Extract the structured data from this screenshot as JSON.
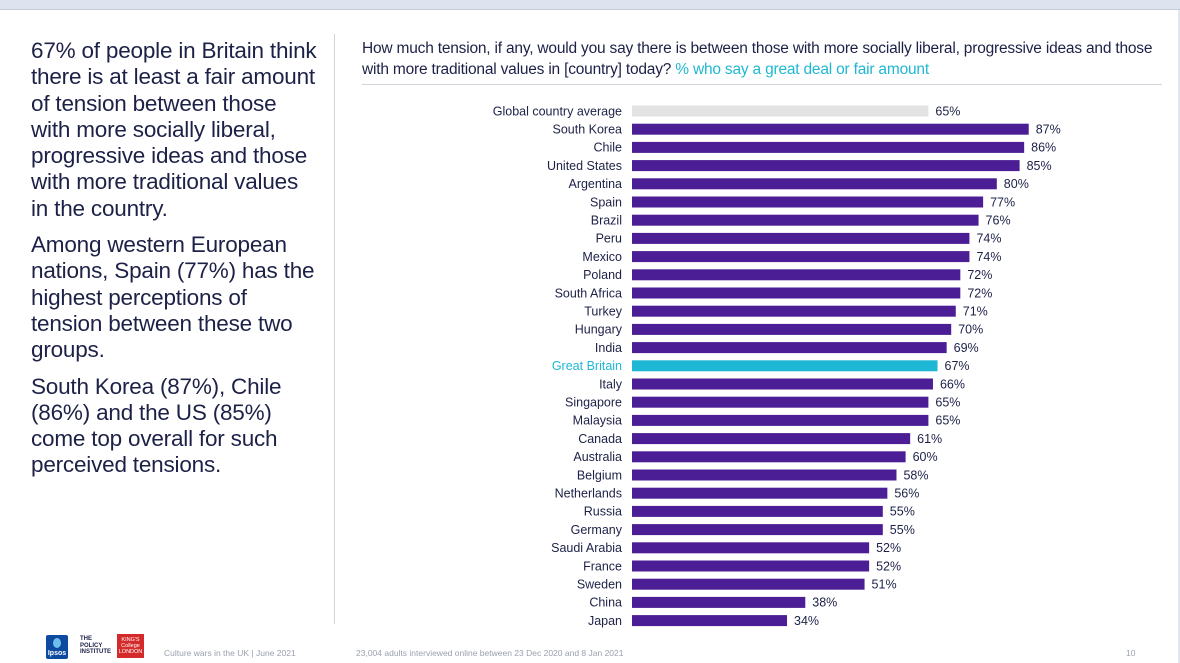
{
  "summary": {
    "para1": "67% of people in Britain think there is at least a fair amount of tension between those with more socially liberal, progressive ideas and those with more traditional values in the country.",
    "para2": "Among western European nations, Spain (77%) has the highest perceptions of tension between these two groups.",
    "para3": "South Korea (87%), Chile (86%) and the US (85%) come top overall for such perceived tensions."
  },
  "question": {
    "text": "How much tension, if any, would you say there is between those with more socially liberal, progressive ideas and those with more traditional values in [country] today?",
    "highlight": "% who say a great deal or fair amount"
  },
  "chart_data": {
    "type": "bar",
    "orientation": "horizontal",
    "title": "How much tension, if any, would you say there is between those with more socially liberal, progressive ideas and those with more traditional values in [country] today? % who say a great deal or fair amount",
    "xlim": [
      0,
      100
    ],
    "value_suffix": "%",
    "colors": {
      "default": "#4b1e95",
      "average": "#e3e3e3",
      "highlight": "#1fb8d4",
      "highlight_label": "#1fb8d4",
      "label": "#1d2147"
    },
    "categories": [
      "Global country average",
      "South Korea",
      "Chile",
      "United States",
      "Argentina",
      "Spain",
      "Brazil",
      "Peru",
      "Mexico",
      "Poland",
      "South Africa",
      "Turkey",
      "Hungary",
      "India",
      "Great Britain",
      "Italy",
      "Singapore",
      "Malaysia",
      "Canada",
      "Australia",
      "Belgium",
      "Netherlands",
      "Russia",
      "Germany",
      "Saudi Arabia",
      "France",
      "Sweden",
      "China",
      "Japan"
    ],
    "values": [
      65,
      87,
      86,
      85,
      80,
      77,
      76,
      74,
      74,
      72,
      72,
      71,
      70,
      69,
      67,
      66,
      65,
      65,
      61,
      60,
      58,
      56,
      55,
      55,
      52,
      52,
      51,
      38,
      34
    ],
    "bar_roles": [
      "average",
      "default",
      "default",
      "default",
      "default",
      "default",
      "default",
      "default",
      "default",
      "default",
      "default",
      "default",
      "default",
      "default",
      "highlight",
      "default",
      "default",
      "default",
      "default",
      "default",
      "default",
      "default",
      "default",
      "default",
      "default",
      "default",
      "default",
      "default",
      "default"
    ]
  },
  "footer": {
    "ipsos_logo": "Ipsos",
    "policy_logo": "THE POLICY INSTITUTE",
    "kings_logo": "KING'S College LONDON",
    "left": "Culture wars in the UK | June 2021",
    "middle": "23,004 adults interviewed online between 23 Dec 2020 and 8 Jan 2021",
    "page": "10"
  }
}
